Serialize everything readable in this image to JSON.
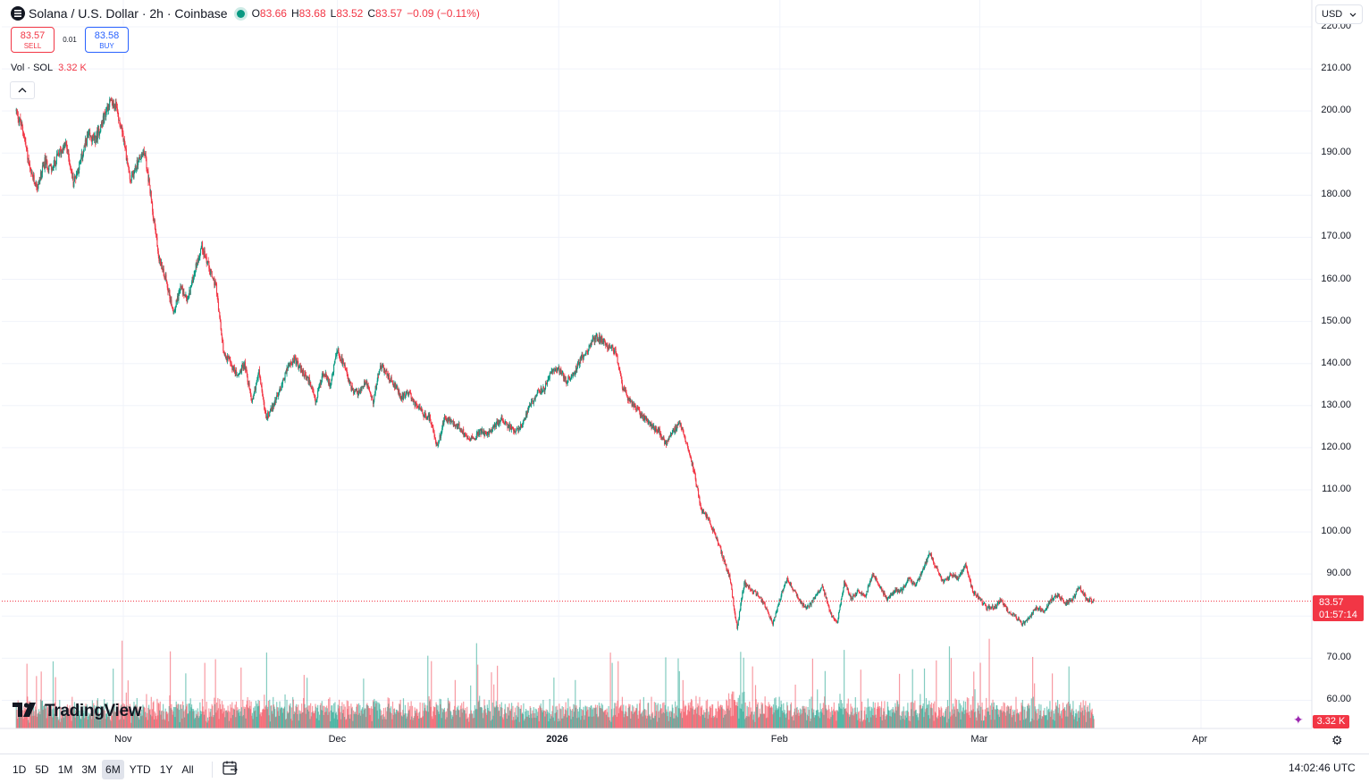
{
  "header": {
    "symbol_title": "Solana / U.S. Dollar · 2h · Coinbase",
    "ohlc": [
      {
        "k": "O",
        "v": "83.66"
      },
      {
        "k": "H",
        "v": "83.68"
      },
      {
        "k": "L",
        "v": "83.52"
      },
      {
        "k": "C",
        "v": "83.57"
      },
      {
        "k": "",
        "v": "−0.09 (−0.11%)"
      }
    ]
  },
  "trade": {
    "sell_price": "83.57",
    "sell_label": "SELL",
    "spread": "0.01",
    "buy_price": "83.58",
    "buy_label": "BUY"
  },
  "volume_legend": {
    "label": "Vol · SOL",
    "value": "3.32 K"
  },
  "currency": "USD",
  "brand": "TradingView",
  "last_price_badge": {
    "price": "83.57",
    "countdown": "01:57:14"
  },
  "volume_badge": "3.32 K",
  "time_ranges": [
    "1D",
    "5D",
    "1M",
    "3M",
    "6M",
    "YTD",
    "1Y",
    "All"
  ],
  "active_range": "6M",
  "clock": "14:02:46 UTC",
  "colors": {
    "up": "#089981",
    "down": "#f23645",
    "grid": "#f0f3fa",
    "axis_text": "#131722"
  },
  "icons": {
    "symbol": "solana-logo-icon",
    "collapse": "chevron-up-icon",
    "calendar": "calendar-goto-icon",
    "settings": "gear-icon"
  },
  "chart_data": {
    "type": "candlestick",
    "title": "Solana / U.S. Dollar · 2h · Coinbase",
    "interval": "2h",
    "y_ticks": [
      60,
      70,
      80,
      90,
      100,
      110,
      120,
      130,
      140,
      150,
      160,
      170,
      180,
      190,
      200,
      210,
      220
    ],
    "y_labels": [
      "60.00",
      "70.00",
      "80.00",
      "90.00",
      "100.00",
      "110.00",
      "120.00",
      "130.00",
      "140.00",
      "150.00",
      "160.00",
      "170.00",
      "180.00",
      "190.00",
      "200.00",
      "210.00",
      "220.00"
    ],
    "ylim": [
      55,
      225
    ],
    "x_labels": [
      {
        "label": "Nov",
        "t": 0.0,
        "bold": false
      },
      {
        "label": "Dec",
        "t": 30.0,
        "bold": false
      },
      {
        "label": "2026",
        "t": 61.0,
        "bold": true
      },
      {
        "label": "Feb",
        "t": 92.0,
        "bold": false
      },
      {
        "label": "Mar",
        "t": 120.0,
        "bold": false
      },
      {
        "label": "Apr",
        "t": 151.0,
        "bold": false
      }
    ],
    "xlim": [
      -15,
      166
    ],
    "price_path": [
      [
        -15,
        200
      ],
      [
        -14,
        195
      ],
      [
        -13,
        185
      ],
      [
        -12,
        182
      ],
      [
        -11,
        188
      ],
      [
        -10,
        186
      ],
      [
        -9,
        190
      ],
      [
        -8,
        192
      ],
      [
        -7,
        183
      ],
      [
        -6,
        188
      ],
      [
        -5,
        194
      ],
      [
        -4,
        193
      ],
      [
        -3,
        197
      ],
      [
        -2,
        202
      ],
      [
        -1,
        201
      ],
      [
        0,
        194
      ],
      [
        1,
        183
      ],
      [
        2,
        188
      ],
      [
        3,
        190
      ],
      [
        4,
        178
      ],
      [
        5,
        165
      ],
      [
        6,
        160
      ],
      [
        7,
        152
      ],
      [
        8,
        158
      ],
      [
        9,
        155
      ],
      [
        10,
        162
      ],
      [
        11,
        168
      ],
      [
        12,
        163
      ],
      [
        13,
        158
      ],
      [
        14,
        143
      ],
      [
        15,
        140
      ],
      [
        16,
        137
      ],
      [
        17,
        140
      ],
      [
        18,
        131
      ],
      [
        19,
        138
      ],
      [
        20,
        127
      ],
      [
        21,
        130
      ],
      [
        22,
        134
      ],
      [
        23,
        139
      ],
      [
        24,
        141
      ],
      [
        25,
        138
      ],
      [
        26,
        136
      ],
      [
        27,
        131
      ],
      [
        28,
        138
      ],
      [
        29,
        135
      ],
      [
        30,
        143
      ],
      [
        31,
        139
      ],
      [
        32,
        134
      ],
      [
        33,
        133
      ],
      [
        34,
        136
      ],
      [
        35,
        131
      ],
      [
        36,
        140
      ],
      [
        37,
        137
      ],
      [
        38,
        135
      ],
      [
        39,
        132
      ],
      [
        40,
        133
      ],
      [
        41,
        130
      ],
      [
        42,
        128
      ],
      [
        43,
        127
      ],
      [
        44,
        120
      ],
      [
        45,
        127
      ],
      [
        46,
        126
      ],
      [
        47,
        125
      ],
      [
        48,
        123
      ],
      [
        49,
        122
      ],
      [
        50,
        124
      ],
      [
        51,
        123
      ],
      [
        52,
        125
      ],
      [
        53,
        127
      ],
      [
        54,
        125
      ],
      [
        55,
        124
      ],
      [
        56,
        126
      ],
      [
        57,
        130
      ],
      [
        58,
        133
      ],
      [
        59,
        134
      ],
      [
        60,
        138
      ],
      [
        61,
        139
      ],
      [
        62,
        136
      ],
      [
        63,
        137
      ],
      [
        64,
        141
      ],
      [
        65,
        143
      ],
      [
        66,
        146
      ],
      [
        67,
        146
      ],
      [
        68,
        144
      ],
      [
        69,
        143
      ],
      [
        70,
        134
      ],
      [
        71,
        131
      ],
      [
        72,
        129
      ],
      [
        73,
        127
      ],
      [
        74,
        125
      ],
      [
        75,
        124
      ],
      [
        76,
        121
      ],
      [
        77,
        124
      ],
      [
        78,
        126
      ],
      [
        79,
        121
      ],
      [
        80,
        114
      ],
      [
        81,
        105
      ],
      [
        82,
        103
      ],
      [
        83,
        99
      ],
      [
        84,
        94
      ],
      [
        85,
        89
      ],
      [
        86,
        77
      ],
      [
        87,
        88
      ],
      [
        88,
        86
      ],
      [
        89,
        85
      ],
      [
        90,
        82
      ],
      [
        91,
        78
      ],
      [
        92,
        84
      ],
      [
        93,
        89
      ],
      [
        94,
        86
      ],
      [
        95,
        83
      ],
      [
        96,
        82
      ],
      [
        97,
        85
      ],
      [
        98,
        87
      ],
      [
        99,
        81
      ],
      [
        100,
        78
      ],
      [
        101,
        88
      ],
      [
        102,
        84
      ],
      [
        103,
        86
      ],
      [
        104,
        85
      ],
      [
        105,
        90
      ],
      [
        106,
        87
      ],
      [
        107,
        84
      ],
      [
        108,
        86
      ],
      [
        109,
        86
      ],
      [
        110,
        89
      ],
      [
        111,
        87
      ],
      [
        112,
        91
      ],
      [
        113,
        95
      ],
      [
        114,
        91
      ],
      [
        115,
        88
      ],
      [
        116,
        90
      ],
      [
        117,
        89
      ],
      [
        118,
        92
      ],
      [
        119,
        86
      ],
      [
        120,
        84
      ],
      [
        121,
        82
      ],
      [
        122,
        82
      ],
      [
        123,
        84
      ],
      [
        124,
        81
      ],
      [
        125,
        80
      ],
      [
        126,
        78
      ],
      [
        127,
        80
      ],
      [
        128,
        82
      ],
      [
        129,
        81
      ],
      [
        130,
        84
      ],
      [
        131,
        85
      ],
      [
        132,
        83
      ],
      [
        133,
        84
      ],
      [
        134,
        87
      ],
      [
        135,
        84
      ],
      [
        136,
        83.57
      ]
    ],
    "volume_axis_max": "approx"
  }
}
